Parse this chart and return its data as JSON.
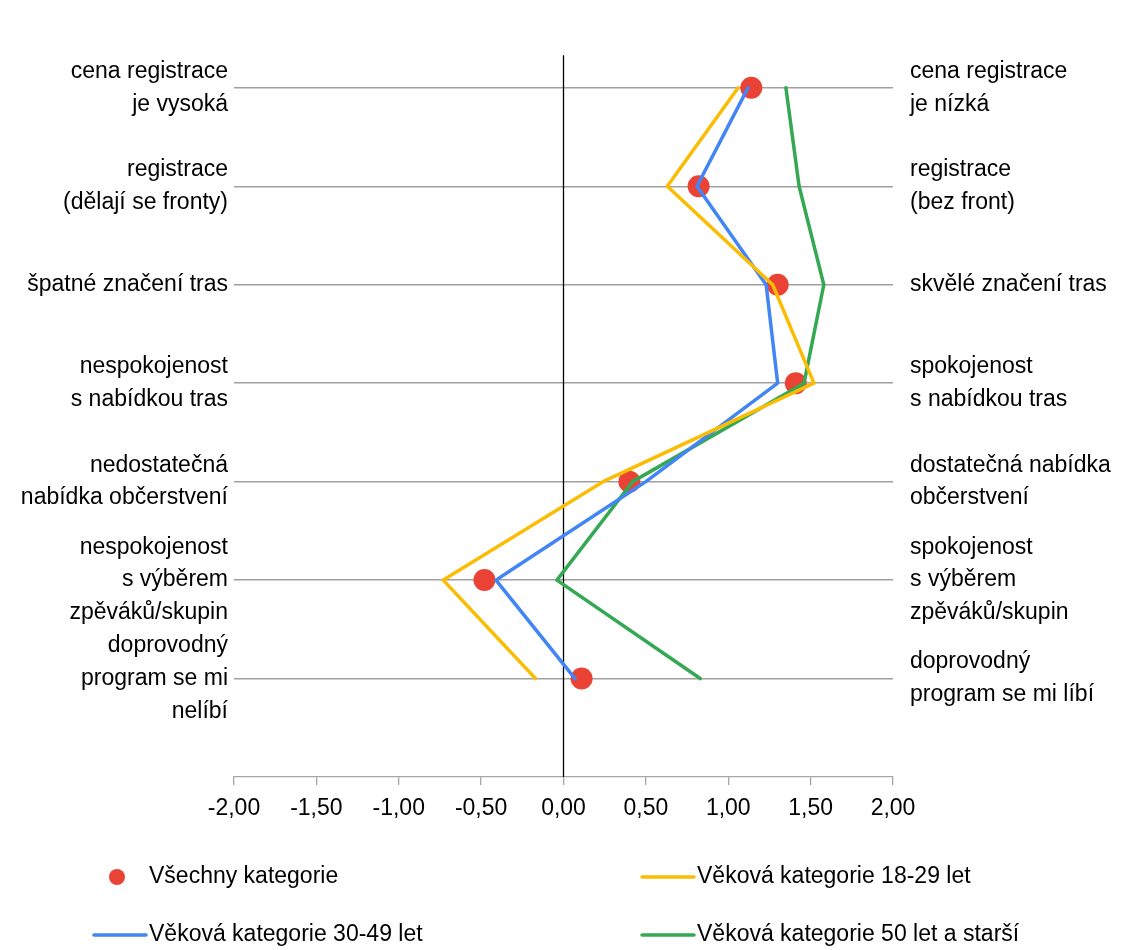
{
  "chart_data": {
    "type": "line",
    "orientation": "horizontal",
    "categories": [
      "cena registrace\nje vysoká",
      "registrace\n(dělají se fronty)",
      "špatné značení tras",
      "nespokojenost\ns nabídkou tras",
      "nedostatečná\nnabídka občerstvení",
      "nespokojenost\ns výběrem\nzpěváků/skupin",
      "doprovodný\nprogram se mi\nnelíbí"
    ],
    "y2_categories": [
      "cena registrace\nje nízká",
      "registrace\n(bez front)",
      "skvělé značení tras",
      "spokojenost\ns nabídkou tras",
      "dostatečná nabídka\nobčerstvení",
      "spokojenost\ns výběrem\nzpěváků/skupin",
      "doprovodný\nprogram se mi líbí"
    ],
    "series": [
      {
        "name": "Všechny kategorie",
        "type": "scatter",
        "marker": "circle",
        "color": "#ea4335",
        "values": [
          1.14,
          0.82,
          1.3,
          1.41,
          0.4,
          -0.48,
          0.11
        ]
      },
      {
        "name": "Věková kategorie 18-29 let",
        "color": "#fbbc04",
        "values": [
          1.06,
          0.63,
          1.27,
          1.52,
          0.24,
          -0.73,
          -0.17
        ]
      },
      {
        "name": "Věková kategorie 30-49 let",
        "color": "#4285f4",
        "values": [
          1.12,
          0.81,
          1.23,
          1.3,
          0.5,
          -0.41,
          0.07
        ]
      },
      {
        "name": "Věková kategorie 50 let a starší",
        "color": "#34a853",
        "values": [
          1.35,
          1.43,
          1.58,
          1.46,
          0.42,
          -0.04,
          0.83
        ]
      }
    ],
    "marker": "none",
    "xlim": [
      -2,
      2
    ],
    "xticks": [
      {
        "value": -2,
        "label": "-2,00"
      },
      {
        "value": -1.5,
        "label": "-1,50"
      },
      {
        "value": -1,
        "label": "-1,00"
      },
      {
        "value": -0.5,
        "label": "-0,50"
      },
      {
        "value": 0,
        "label": "0,00"
      },
      {
        "value": 0.5,
        "label": "0,50"
      },
      {
        "value": 1,
        "label": "1,00"
      },
      {
        "value": 1.5,
        "label": "1,50"
      },
      {
        "value": 2,
        "label": "2,00"
      }
    ],
    "grid": "y",
    "legend": "bottom",
    "ref_lines": [
      {
        "axis": "x",
        "value": 0,
        "color": "#000000"
      }
    ]
  }
}
